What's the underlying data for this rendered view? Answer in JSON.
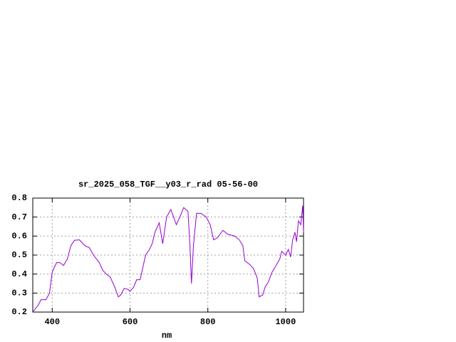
{
  "chart_data": {
    "type": "line",
    "title": "sr_2025_058_TGF__y03_r_rad 05-56-00",
    "x_label": "nm",
    "x": [
      350,
      365,
      371,
      384,
      393,
      400,
      411,
      420,
      429,
      439,
      448,
      457,
      470,
      481,
      488,
      495,
      506,
      521,
      530,
      539,
      549,
      561,
      570,
      576,
      585,
      594,
      600,
      609,
      617,
      626,
      640,
      650,
      657,
      664,
      675,
      684,
      694,
      705,
      719,
      728,
      738,
      749,
      754,
      758,
      763,
      771,
      782,
      796,
      806,
      815,
      824,
      839,
      851,
      869,
      881,
      890,
      895,
      908,
      917,
      927,
      932,
      941,
      947,
      956,
      965,
      974,
      985,
      990,
      1000,
      1007,
      1013,
      1018,
      1024,
      1028,
      1033,
      1039,
      1044,
      1046
    ],
    "series": [
      {
        "name": "rad",
        "color": "#9400d3",
        "values": [
          0.2,
          0.24,
          0.265,
          0.265,
          0.3,
          0.41,
          0.46,
          0.46,
          0.445,
          0.48,
          0.55,
          0.578,
          0.58,
          0.555,
          0.545,
          0.54,
          0.5,
          0.46,
          0.42,
          0.4,
          0.385,
          0.33,
          0.28,
          0.29,
          0.325,
          0.32,
          0.31,
          0.33,
          0.37,
          0.37,
          0.5,
          0.53,
          0.56,
          0.62,
          0.67,
          0.56,
          0.7,
          0.74,
          0.66,
          0.7,
          0.75,
          0.73,
          0.55,
          0.35,
          0.55,
          0.72,
          0.72,
          0.7,
          0.66,
          0.58,
          0.59,
          0.63,
          0.61,
          0.6,
          0.58,
          0.55,
          0.47,
          0.45,
          0.43,
          0.38,
          0.28,
          0.29,
          0.33,
          0.36,
          0.41,
          0.44,
          0.48,
          0.52,
          0.5,
          0.53,
          0.49,
          0.58,
          0.62,
          0.57,
          0.68,
          0.66,
          0.76,
          0.62
        ]
      }
    ],
    "xlim": [
      350,
      1046
    ],
    "ylim": [
      0.2,
      0.8
    ],
    "xticks": [
      400,
      600,
      800,
      1000
    ],
    "yticks": [
      0.2,
      0.3,
      0.4,
      0.5,
      0.6,
      0.7,
      0.8
    ],
    "grid": true
  }
}
